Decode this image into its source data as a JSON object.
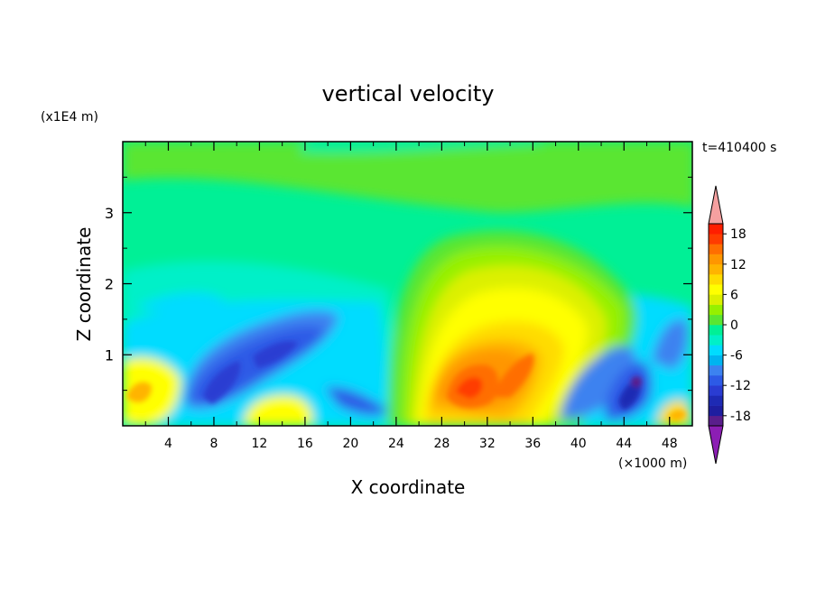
{
  "chart_data": {
    "type": "heatmap",
    "title": "vertical velocity",
    "xlabel": "X coordinate",
    "ylabel": "Z coordinate",
    "x_unit": "(×1000 m)",
    "y_unit": "(x1E4 m)",
    "time_label": "t=410400 s",
    "xlim": [
      0,
      50
    ],
    "ylim": [
      0,
      4
    ],
    "x_ticks": [
      "4",
      "8",
      "12",
      "16",
      "20",
      "24",
      "28",
      "32",
      "36",
      "40",
      "44",
      "48"
    ],
    "y_ticks": [
      "1",
      "2",
      "3"
    ],
    "colorbar": {
      "levels": [
        -20,
        -18,
        -16,
        -14,
        -12,
        -10,
        -8,
        -6,
        -4,
        -2,
        0,
        2,
        4,
        6,
        8,
        10,
        12,
        14,
        16,
        18,
        20
      ],
      "tick_labels": [
        "18",
        "12",
        "6",
        "0",
        "-6",
        "-12",
        "-18"
      ],
      "colors": [
        "#5a1e8c",
        "#1e1ea0",
        "#1e2ab4",
        "#2a3cd2",
        "#2d5ae6",
        "#3c82f0",
        "#00b4f0",
        "#00dcff",
        "#00f0c8",
        "#00f096",
        "#5ae632",
        "#96f000",
        "#dcf000",
        "#ffff00",
        "#ffdc00",
        "#ffb400",
        "#ff9600",
        "#ff6e00",
        "#ff3c00",
        "#ff1e00"
      ],
      "over_color": "#f5a0a0",
      "under_color": "#8c1eb4"
    },
    "features": [
      {
        "name": "updraft core",
        "x": 31,
        "z": 0.6,
        "w": 18
      },
      {
        "name": "updraft plume",
        "x": 33,
        "z": 1.4,
        "w": 8
      },
      {
        "name": "downdraft band",
        "x": 12,
        "z": 0.8,
        "w": -12
      },
      {
        "name": "downdraft band",
        "x": 43,
        "z": 0.4,
        "w": -14
      },
      {
        "name": "downdraft cell",
        "x": 45,
        "z": 0.6,
        "w": -20
      }
    ]
  }
}
